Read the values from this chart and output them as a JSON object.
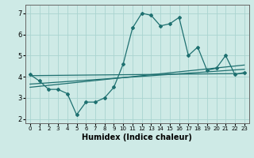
{
  "title": "",
  "xlabel": "Humidex (Indice chaleur)",
  "xlim": [
    -0.5,
    23.5
  ],
  "ylim": [
    1.8,
    7.4
  ],
  "yticks": [
    2,
    3,
    4,
    5,
    6,
    7
  ],
  "xticks": [
    0,
    1,
    2,
    3,
    4,
    5,
    6,
    7,
    8,
    9,
    10,
    11,
    12,
    13,
    14,
    15,
    16,
    17,
    18,
    19,
    20,
    21,
    22,
    23
  ],
  "bg_color": "#ceeae6",
  "line_color": "#1e7070",
  "grid_color": "#aad4d0",
  "main_series_x": [
    0,
    1,
    2,
    3,
    4,
    5,
    6,
    7,
    8,
    9,
    10,
    11,
    12,
    13,
    14,
    15,
    16,
    17,
    18,
    19,
    20,
    21,
    22,
    23
  ],
  "main_series_y": [
    4.1,
    3.8,
    3.4,
    3.4,
    3.2,
    2.2,
    2.8,
    2.8,
    3.0,
    3.5,
    4.6,
    6.3,
    7.0,
    6.9,
    6.4,
    6.5,
    6.8,
    5.0,
    5.4,
    4.3,
    4.4,
    5.0,
    4.1,
    4.2
  ],
  "trend1_x": [
    0,
    23
  ],
  "trend1_y": [
    4.05,
    4.15
  ],
  "trend2_x": [
    0,
    23
  ],
  "trend2_y": [
    3.5,
    4.55
  ],
  "trend3_x": [
    0,
    23
  ],
  "trend3_y": [
    3.65,
    4.35
  ],
  "xlabel_fontsize": 7,
  "tick_fontsize_x": 5,
  "tick_fontsize_y": 6,
  "linewidth": 0.9,
  "markersize": 2.0
}
